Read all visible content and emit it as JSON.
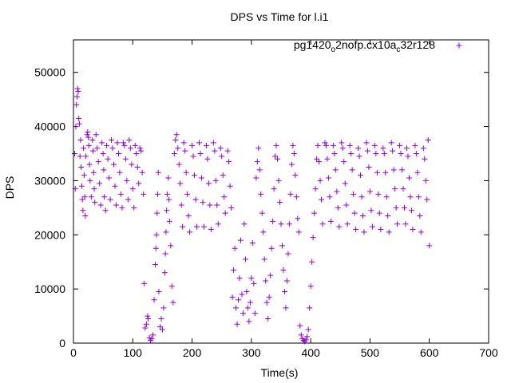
{
  "chart_data": {
    "type": "scatter",
    "title": "DPS vs Time for l.i1",
    "xlabel": "Time(s)",
    "ylabel": "DPS",
    "xlim": [
      0,
      700
    ],
    "ylim": [
      0,
      56000
    ],
    "x_ticks": [
      0,
      100,
      200,
      300,
      400,
      500,
      600,
      700
    ],
    "y_ticks": [
      0,
      10000,
      20000,
      30000,
      40000,
      50000
    ],
    "grid": false,
    "legend_position": "top-right",
    "legend": {
      "base": "pg1420",
      "sub1": "o",
      "mid": "2nofp.cx10a",
      "sub2": "c",
      "tail": "32r128"
    },
    "series": [
      {
        "name": "pg1420_o2nofp.cx10a_c32r128",
        "color": "#9400d3",
        "marker": "+",
        "description": "Dense cloud of points; steady phases ~22k-38k DPS with dips near t=125-160, 265-330 and 380-410 s, early burst to ~47k at t~5 s.",
        "points": [
          [
            2,
            35000
          ],
          [
            3,
            28500
          ],
          [
            4,
            40000
          ],
          [
            5,
            44000
          ],
          [
            6,
            45500
          ],
          [
            7,
            47000
          ],
          [
            8,
            46500
          ],
          [
            9,
            41500
          ],
          [
            10,
            40500
          ],
          [
            11,
            34500
          ],
          [
            12,
            37500
          ],
          [
            13,
            32500
          ],
          [
            14,
            29000
          ],
          [
            15,
            26500
          ],
          [
            16,
            24500
          ],
          [
            17,
            36000
          ],
          [
            18,
            31000
          ],
          [
            19,
            27000
          ],
          [
            20,
            23500
          ],
          [
            21,
            34500
          ],
          [
            23,
            38500
          ],
          [
            24,
            39000
          ],
          [
            25,
            38000
          ],
          [
            26,
            36500
          ],
          [
            27,
            33000
          ],
          [
            28,
            30000
          ],
          [
            30,
            27000
          ],
          [
            32,
            37500
          ],
          [
            33,
            35500
          ],
          [
            34,
            31500
          ],
          [
            35,
            28500
          ],
          [
            36,
            26000
          ],
          [
            38,
            38500
          ],
          [
            40,
            36000
          ],
          [
            42,
            33500
          ],
          [
            44,
            29500
          ],
          [
            46,
            25500
          ],
          [
            48,
            37000
          ],
          [
            50,
            35000
          ],
          [
            51,
            32000
          ],
          [
            52,
            27000
          ],
          [
            54,
            24500
          ],
          [
            56,
            36500
          ],
          [
            58,
            34000
          ],
          [
            60,
            30500
          ],
          [
            62,
            26500
          ],
          [
            64,
            37500
          ],
          [
            66,
            36000
          ],
          [
            68,
            33000
          ],
          [
            70,
            29000
          ],
          [
            72,
            25500
          ],
          [
            74,
            37000
          ],
          [
            76,
            35000
          ],
          [
            78,
            31500
          ],
          [
            80,
            27500
          ],
          [
            82,
            25000
          ],
          [
            84,
            37000
          ],
          [
            86,
            36500
          ],
          [
            88,
            34000
          ],
          [
            90,
            30000
          ],
          [
            92,
            26500
          ],
          [
            94,
            37500
          ],
          [
            96,
            36000
          ],
          [
            98,
            33000
          ],
          [
            100,
            28500
          ],
          [
            102,
            25000
          ],
          [
            104,
            36500
          ],
          [
            106,
            35000
          ],
          [
            108,
            32500
          ],
          [
            110,
            29500
          ],
          [
            112,
            36000
          ],
          [
            114,
            35500
          ],
          [
            116,
            31500
          ],
          [
            118,
            27500
          ],
          [
            119,
            11000
          ],
          [
            121,
            2800
          ],
          [
            123,
            3500
          ],
          [
            125,
            5000
          ],
          [
            126,
            4500
          ],
          [
            128,
            1000
          ],
          [
            130,
            500
          ],
          [
            132,
            800
          ],
          [
            134,
            1500
          ],
          [
            136,
            8000
          ],
          [
            138,
            14500
          ],
          [
            139,
            17500
          ],
          [
            140,
            20000
          ],
          [
            141,
            24000
          ],
          [
            142,
            27500
          ],
          [
            143,
            31500
          ],
          [
            144,
            9500
          ],
          [
            146,
            3000
          ],
          [
            148,
            4500
          ],
          [
            150,
            2500
          ],
          [
            152,
            6500
          ],
          [
            154,
            13000
          ],
          [
            155,
            16500
          ],
          [
            156,
            20500
          ],
          [
            157,
            24500
          ],
          [
            158,
            27500
          ],
          [
            160,
            30500
          ],
          [
            161,
            26500
          ],
          [
            162,
            22500
          ],
          [
            164,
            18000
          ],
          [
            166,
            10500
          ],
          [
            168,
            7500
          ],
          [
            170,
            35000
          ],
          [
            172,
            37500
          ],
          [
            174,
            38500
          ],
          [
            176,
            36000
          ],
          [
            178,
            33000
          ],
          [
            180,
            29500
          ],
          [
            182,
            25500
          ],
          [
            184,
            21500
          ],
          [
            186,
            37000
          ],
          [
            188,
            35500
          ],
          [
            190,
            31500
          ],
          [
            192,
            27500
          ],
          [
            194,
            23500
          ],
          [
            196,
            20500
          ],
          [
            200,
            36500
          ],
          [
            202,
            34500
          ],
          [
            204,
            31000
          ],
          [
            206,
            26500
          ],
          [
            208,
            21500
          ],
          [
            212,
            37000
          ],
          [
            214,
            35000
          ],
          [
            216,
            30500
          ],
          [
            218,
            26000
          ],
          [
            220,
            21500
          ],
          [
            224,
            36500
          ],
          [
            226,
            34000
          ],
          [
            228,
            29500
          ],
          [
            230,
            25500
          ],
          [
            232,
            21000
          ],
          [
            236,
            37000
          ],
          [
            238,
            35500
          ],
          [
            240,
            30000
          ],
          [
            242,
            25500
          ],
          [
            244,
            22000
          ],
          [
            248,
            36000
          ],
          [
            250,
            34500
          ],
          [
            252,
            31000
          ],
          [
            254,
            27000
          ],
          [
            256,
            24000
          ],
          [
            260,
            35500
          ],
          [
            262,
            33500
          ],
          [
            264,
            29000
          ],
          [
            266,
            25000
          ],
          [
            268,
            8500
          ],
          [
            270,
            13500
          ],
          [
            272,
            17500
          ],
          [
            274,
            6500
          ],
          [
            276,
            3500
          ],
          [
            278,
            8000
          ],
          [
            280,
            12000
          ],
          [
            282,
            19000
          ],
          [
            284,
            9000
          ],
          [
            286,
            5500
          ],
          [
            288,
            22000
          ],
          [
            290,
            15500
          ],
          [
            292,
            9500
          ],
          [
            294,
            6500
          ],
          [
            296,
            4000
          ],
          [
            298,
            7500
          ],
          [
            300,
            12000
          ],
          [
            302,
            18500
          ],
          [
            304,
            11000
          ],
          [
            306,
            5500
          ],
          [
            308,
            30500
          ],
          [
            310,
            33500
          ],
          [
            312,
            36000
          ],
          [
            314,
            32000
          ],
          [
            316,
            27500
          ],
          [
            318,
            24000
          ],
          [
            320,
            20500
          ],
          [
            322,
            15500
          ],
          [
            324,
            11500
          ],
          [
            326,
            7500
          ],
          [
            328,
            4500
          ],
          [
            330,
            8500
          ],
          [
            332,
            12500
          ],
          [
            334,
            17500
          ],
          [
            336,
            22500
          ],
          [
            338,
            28500
          ],
          [
            340,
            34500
          ],
          [
            342,
            36500
          ],
          [
            344,
            34000
          ],
          [
            346,
            30000
          ],
          [
            348,
            26000
          ],
          [
            350,
            22000
          ],
          [
            352,
            18000
          ],
          [
            354,
            13500
          ],
          [
            356,
            9500
          ],
          [
            358,
            6500
          ],
          [
            360,
            11500
          ],
          [
            362,
            16500
          ],
          [
            364,
            22000
          ],
          [
            366,
            27500
          ],
          [
            368,
            33000
          ],
          [
            370,
            36500
          ],
          [
            372,
            35000
          ],
          [
            374,
            31000
          ],
          [
            376,
            27000
          ],
          [
            378,
            23000
          ],
          [
            380,
            20500
          ],
          [
            382,
            3200
          ],
          [
            384,
            1500
          ],
          [
            386,
            800
          ],
          [
            388,
            500
          ],
          [
            390,
            300
          ],
          [
            392,
            600
          ],
          [
            394,
            1200
          ],
          [
            396,
            2500
          ],
          [
            398,
            6500
          ],
          [
            400,
            10500
          ],
          [
            402,
            15000
          ],
          [
            404,
            19500
          ],
          [
            406,
            24000
          ],
          [
            408,
            28500
          ],
          [
            410,
            34000
          ],
          [
            412,
            36500
          ],
          [
            414,
            33500
          ],
          [
            416,
            30000
          ],
          [
            418,
            26500
          ],
          [
            420,
            22000
          ],
          [
            424,
            37000
          ],
          [
            426,
            36500
          ],
          [
            428,
            34000
          ],
          [
            430,
            30500
          ],
          [
            432,
            27000
          ],
          [
            434,
            22500
          ],
          [
            438,
            36500
          ],
          [
            440,
            35000
          ],
          [
            442,
            32000
          ],
          [
            444,
            28000
          ],
          [
            446,
            25000
          ],
          [
            448,
            21500
          ],
          [
            452,
            37000
          ],
          [
            454,
            36000
          ],
          [
            456,
            33500
          ],
          [
            458,
            29500
          ],
          [
            460,
            25500
          ],
          [
            462,
            22000
          ],
          [
            466,
            36500
          ],
          [
            468,
            35000
          ],
          [
            470,
            32000
          ],
          [
            472,
            27500
          ],
          [
            474,
            24000
          ],
          [
            476,
            21000
          ],
          [
            480,
            36000
          ],
          [
            482,
            34500
          ],
          [
            484,
            31000
          ],
          [
            486,
            27000
          ],
          [
            488,
            23500
          ],
          [
            490,
            20500
          ],
          [
            494,
            37000
          ],
          [
            496,
            35500
          ],
          [
            498,
            32500
          ],
          [
            500,
            28000
          ],
          [
            502,
            24500
          ],
          [
            504,
            21500
          ],
          [
            508,
            36500
          ],
          [
            510,
            35000
          ],
          [
            512,
            31500
          ],
          [
            514,
            27500
          ],
          [
            516,
            24000
          ],
          [
            518,
            21000
          ],
          [
            522,
            36000
          ],
          [
            524,
            35000
          ],
          [
            526,
            31500
          ],
          [
            528,
            27000
          ],
          [
            530,
            23500
          ],
          [
            532,
            20500
          ],
          [
            536,
            37000
          ],
          [
            538,
            35500
          ],
          [
            540,
            32000
          ],
          [
            542,
            28500
          ],
          [
            544,
            25000
          ],
          [
            546,
            22000
          ],
          [
            550,
            36500
          ],
          [
            552,
            35000
          ],
          [
            554,
            32000
          ],
          [
            556,
            28500
          ],
          [
            558,
            25000
          ],
          [
            560,
            22000
          ],
          [
            562,
            36000
          ],
          [
            564,
            34500
          ],
          [
            566,
            30500
          ],
          [
            568,
            27000
          ],
          [
            570,
            24500
          ],
          [
            572,
            21000
          ],
          [
            576,
            36500
          ],
          [
            578,
            35000
          ],
          [
            580,
            31500
          ],
          [
            582,
            27000
          ],
          [
            584,
            23500
          ],
          [
            586,
            20500
          ],
          [
            590,
            36000
          ],
          [
            592,
            34000
          ],
          [
            594,
            30000
          ],
          [
            596,
            26500
          ],
          [
            598,
            37500
          ],
          [
            600,
            18000
          ]
        ]
      }
    ]
  }
}
